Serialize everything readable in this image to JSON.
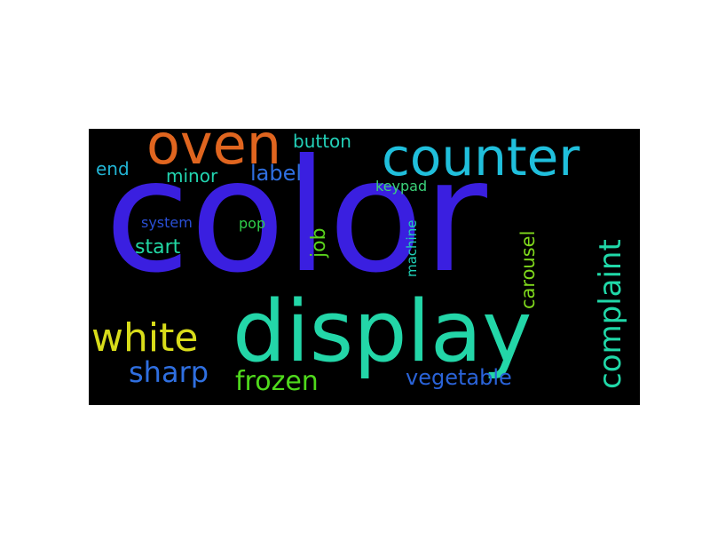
{
  "wordcloud": {
    "background": "#000000",
    "words": [
      {
        "text": "color",
        "color": "#3a1fe0"
      },
      {
        "text": "display",
        "color": "#23d6a8"
      },
      {
        "text": "oven",
        "color": "#e0651f"
      },
      {
        "text": "counter",
        "color": "#20bfdc"
      },
      {
        "text": "white",
        "color": "#d8dc1a"
      },
      {
        "text": "complaint",
        "color": "#20d8a8"
      },
      {
        "text": "frozen",
        "color": "#4fd91c"
      },
      {
        "text": "sharp",
        "color": "#2f6fe0"
      },
      {
        "text": "vegetable",
        "color": "#2a63d8"
      },
      {
        "text": "carousel",
        "color": "#7fd81c"
      },
      {
        "text": "label",
        "color": "#2f6fe0"
      },
      {
        "text": "job",
        "color": "#59d21c"
      },
      {
        "text": "start",
        "color": "#22d8a4"
      },
      {
        "text": "button",
        "color": "#23d0b8"
      },
      {
        "text": "minor",
        "color": "#22d4b0"
      },
      {
        "text": "end",
        "color": "#22b4d4"
      },
      {
        "text": "keypad",
        "color": "#3bd27a"
      },
      {
        "text": "machine",
        "color": "#20d1b8"
      },
      {
        "text": "system",
        "color": "#2a4fd6"
      },
      {
        "text": "pop",
        "color": "#2fcf4a"
      }
    ]
  }
}
